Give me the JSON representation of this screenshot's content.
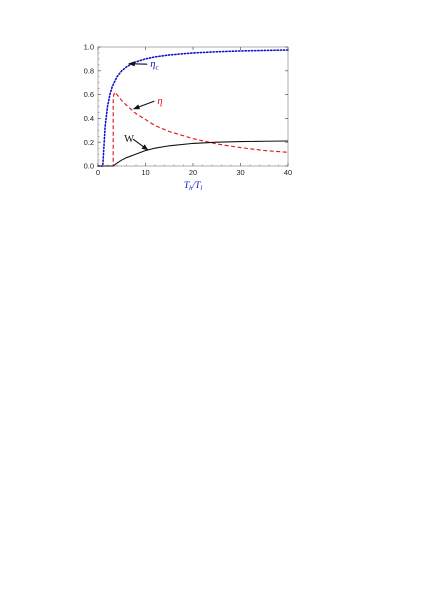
{
  "chart_data": {
    "type": "line",
    "xlabel": "T_h/T_l",
    "ylabel": "",
    "xlim": [
      0,
      40
    ],
    "ylim": [
      0,
      1.0
    ],
    "x_ticks": [
      0,
      10,
      20,
      30,
      40
    ],
    "y_ticks": [
      0.0,
      0.2,
      0.4,
      0.6,
      0.8,
      1.0
    ],
    "x_tick_labels": [
      "0",
      "10",
      "20",
      "30",
      "40"
    ],
    "y_tick_labels": [
      "0.0",
      "0.2",
      "0.4",
      "0.6",
      "0.8",
      "1.0"
    ],
    "grid": false,
    "series": [
      {
        "name": "η_c",
        "label_main": "η",
        "label_sub": "c",
        "color": "#1010cc",
        "style": "dotted",
        "x": [
          0,
          1,
          1.5,
          2,
          2.5,
          3,
          4,
          5,
          6,
          7,
          8,
          10,
          12,
          15,
          20,
          25,
          30,
          35,
          40
        ],
        "y": [
          0,
          0,
          0.33,
          0.5,
          0.6,
          0.667,
          0.75,
          0.8,
          0.833,
          0.857,
          0.875,
          0.9,
          0.917,
          0.933,
          0.95,
          0.96,
          0.967,
          0.971,
          0.975
        ]
      },
      {
        "name": "η",
        "color": "#dd1111",
        "style": "dashed",
        "x": [
          0,
          3.2,
          3.2,
          3.5,
          4,
          5,
          6,
          8,
          10,
          12,
          15,
          20,
          25,
          30,
          35,
          40
        ],
        "y": [
          0,
          0,
          0.58,
          0.62,
          0.6,
          0.55,
          0.51,
          0.44,
          0.39,
          0.34,
          0.29,
          0.23,
          0.185,
          0.155,
          0.13,
          0.115
        ]
      },
      {
        "name": "W",
        "color": "#111111",
        "style": "solid",
        "x": [
          0,
          3.2,
          4,
          5,
          6,
          8,
          10,
          12,
          15,
          20,
          25,
          30,
          35,
          40
        ],
        "y": [
          0,
          0,
          0.025,
          0.05,
          0.07,
          0.1,
          0.13,
          0.15,
          0.17,
          0.19,
          0.2,
          0.205,
          0.208,
          0.21
        ]
      }
    ],
    "annotations": [
      {
        "series": "η_c",
        "text_main": "η",
        "text_sub": "c",
        "text_x": 11,
        "text_y": 0.83,
        "arrow_to_x": 6.5,
        "arrow_to_y": 0.86
      },
      {
        "series": "η",
        "text_main": "η",
        "text_sub": "",
        "text_x": 12.5,
        "text_y": 0.52,
        "arrow_to_x": 7.5,
        "arrow_to_y": 0.48
      },
      {
        "series": "W",
        "text_main": "W",
        "text_sub": "",
        "text_x": 5.5,
        "text_y": 0.2,
        "arrow_to_x": 10.5,
        "arrow_to_y": 0.135
      }
    ]
  }
}
